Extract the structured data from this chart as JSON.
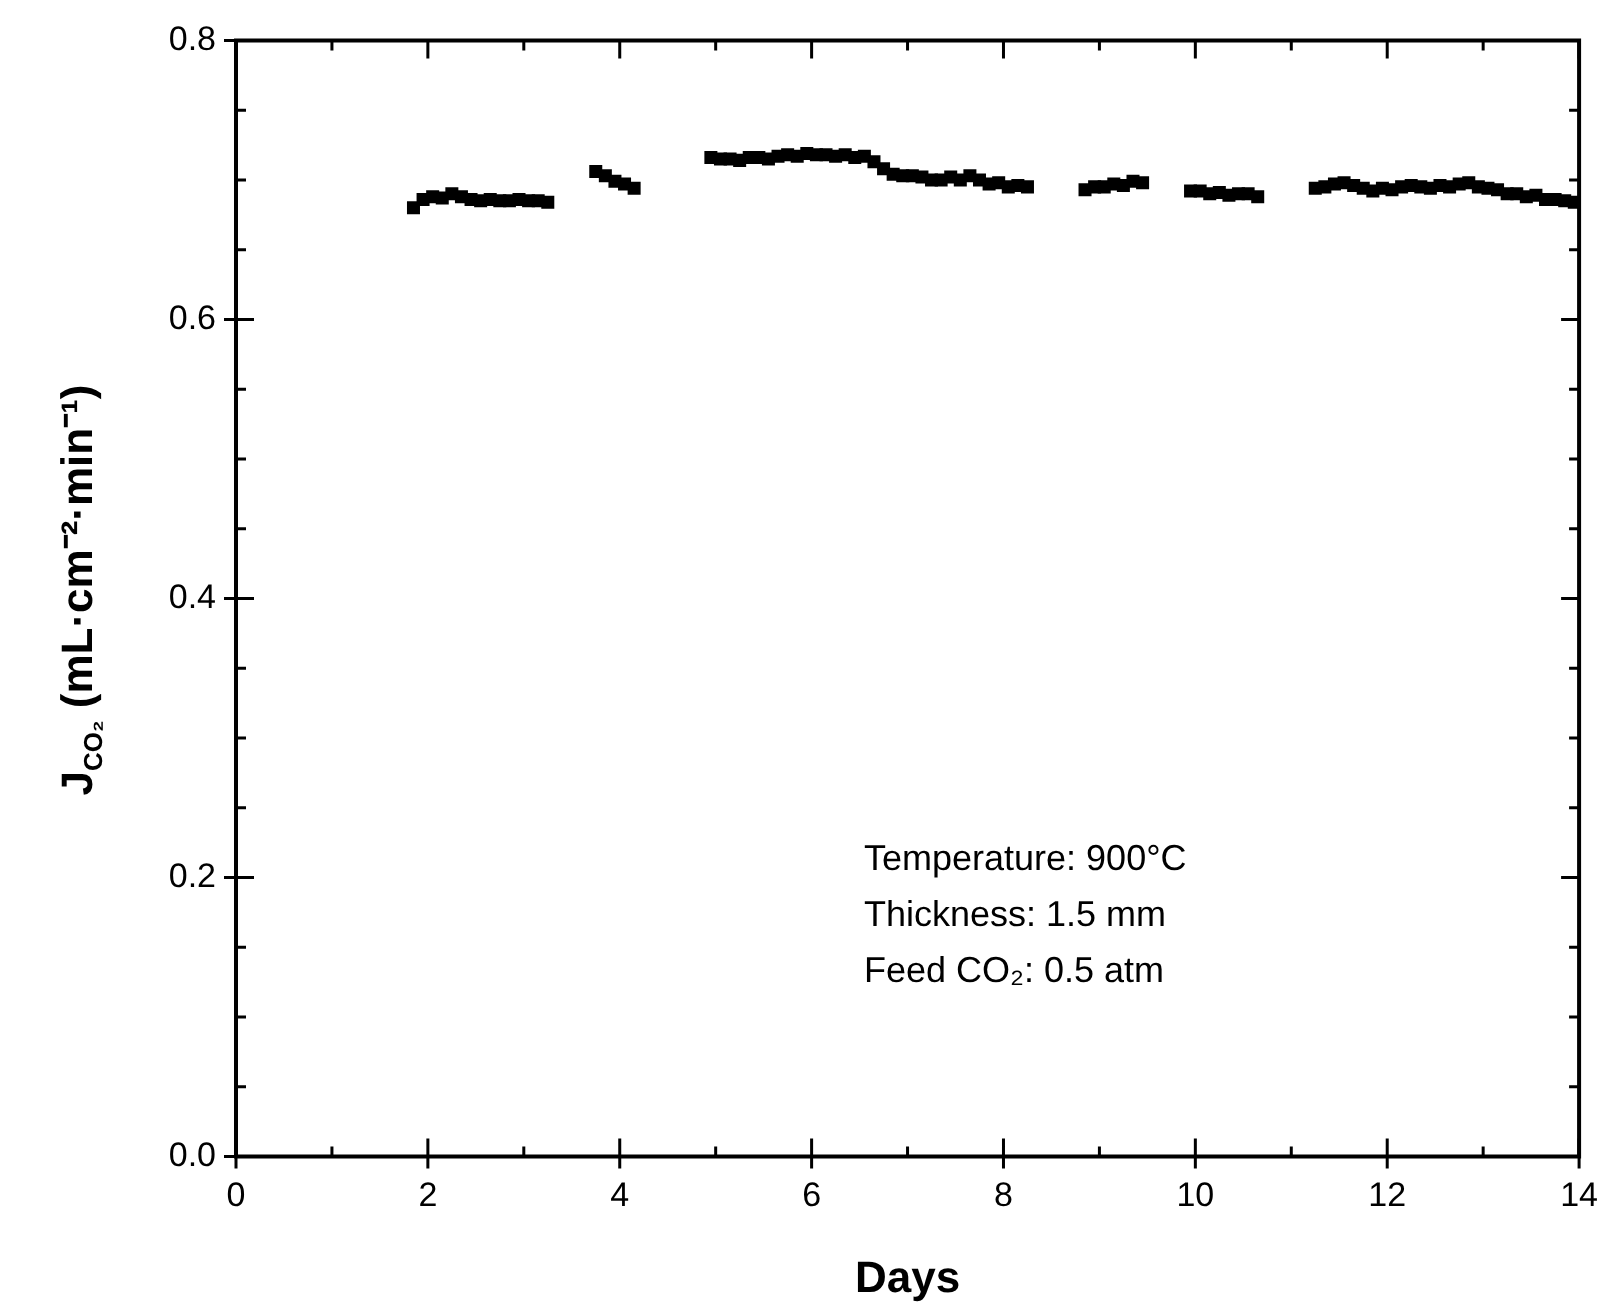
{
  "chart_data": {
    "type": "scatter",
    "xlabel": "Days",
    "ylabel": "J$_{CO₂}$ (mL·cm⁻²·min⁻¹)",
    "annotations": [
      "Temperature: 900°C",
      "Thickness: 1.5 mm",
      "Feed CO₂: 0.5 atm"
    ],
    "marker": "square",
    "legend": false,
    "grid": false,
    "xlim": [
      0,
      14
    ],
    "ylim": [
      0,
      0.8
    ],
    "xticks": [
      0,
      {
        "value": 1,
        "label": null
      },
      2,
      {
        "value": 3,
        "label": null
      },
      4,
      {
        "value": 5,
        "label": null
      },
      6,
      {
        "value": 7,
        "label": null
      },
      8,
      {
        "value": 9,
        "label": null
      },
      10,
      {
        "value": 11,
        "label": null
      },
      12,
      {
        "value": 13,
        "label": null
      },
      14
    ],
    "yticks": [
      {
        "value": 0,
        "label": "0.0"
      },
      {
        "value": 0.05,
        "label": null
      },
      {
        "value": 0.1,
        "label": null
      },
      {
        "value": 0.15,
        "label": null
      },
      0.2,
      {
        "value": 0.25,
        "label": null
      },
      {
        "value": 0.3,
        "label": null
      },
      {
        "value": 0.35,
        "label": null
      },
      0.4,
      {
        "value": 0.45,
        "label": null
      },
      {
        "value": 0.5,
        "label": null
      },
      {
        "value": 0.55,
        "label": null
      },
      0.6,
      {
        "value": 0.65,
        "label": null
      },
      {
        "value": 0.7,
        "label": null
      },
      {
        "value": 0.75,
        "label": null
      },
      0.8
    ],
    "series": [
      {
        "color": "#000000",
        "x": [
          1.85,
          1.95,
          2.05,
          2.15,
          2.25,
          2.35,
          2.45,
          2.55,
          2.65,
          2.75,
          2.85,
          2.95,
          3.05,
          3.15,
          3.25,
          3.75,
          3.85,
          3.95,
          4.05,
          4.15,
          4.95,
          5.05,
          5.15,
          5.25,
          5.35,
          5.45,
          5.55,
          5.65,
          5.75,
          5.85,
          5.95,
          6.05,
          6.15,
          6.25,
          6.35,
          6.45,
          6.55,
          6.65,
          6.75,
          6.85,
          6.95,
          7.05,
          7.15,
          7.25,
          7.35,
          7.45,
          7.55,
          7.65,
          7.75,
          7.85,
          7.95,
          8.05,
          8.15,
          8.25,
          8.85,
          8.95,
          9.05,
          9.15,
          9.25,
          9.35,
          9.45,
          9.95,
          10.05,
          10.15,
          10.25,
          10.35,
          10.45,
          10.55,
          10.65,
          11.25,
          11.35,
          11.45,
          11.55,
          11.65,
          11.75,
          11.85,
          11.95,
          12.05,
          12.15,
          12.25,
          12.35,
          12.45,
          12.55,
          12.65,
          12.75,
          12.85,
          12.95,
          13.05,
          13.15,
          13.25,
          13.35,
          13.45,
          13.55,
          13.65,
          13.75,
          13.85,
          13.95
        ],
        "values": [
          0.68,
          0.686,
          0.688,
          0.687,
          0.69,
          0.688,
          0.686,
          0.685,
          0.686,
          0.685,
          0.685,
          0.686,
          0.685,
          0.685,
          0.684,
          0.706,
          0.703,
          0.699,
          0.697,
          0.694,
          0.716,
          0.715,
          0.715,
          0.714,
          0.716,
          0.716,
          0.715,
          0.717,
          0.718,
          0.717,
          0.719,
          0.718,
          0.718,
          0.717,
          0.718,
          0.716,
          0.717,
          0.713,
          0.708,
          0.704,
          0.703,
          0.703,
          0.702,
          0.7,
          0.7,
          0.702,
          0.7,
          0.703,
          0.7,
          0.697,
          0.698,
          0.695,
          0.696,
          0.695,
          0.693,
          0.695,
          0.695,
          0.697,
          0.696,
          0.699,
          0.698,
          0.692,
          0.692,
          0.69,
          0.691,
          0.689,
          0.69,
          0.69,
          0.688,
          0.694,
          0.695,
          0.697,
          0.698,
          0.696,
          0.694,
          0.692,
          0.694,
          0.693,
          0.695,
          0.696,
          0.695,
          0.694,
          0.696,
          0.695,
          0.697,
          0.698,
          0.695,
          0.694,
          0.693,
          0.69,
          0.69,
          0.688,
          0.689,
          0.686,
          0.686,
          0.685,
          0.684
        ]
      }
    ]
  }
}
